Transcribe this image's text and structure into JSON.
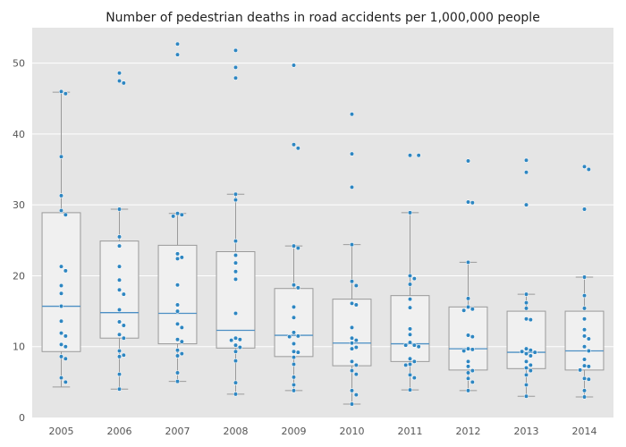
{
  "chart_data": {
    "type": "box",
    "title": "Number of pedestrian deaths in road accidents per 1,000,000 people",
    "xlabel": "",
    "ylabel": "",
    "ylim": [
      0,
      55
    ],
    "yticks": [
      0,
      10,
      20,
      30,
      40,
      50
    ],
    "categories": [
      "2005",
      "2006",
      "2007",
      "2008",
      "2009",
      "2010",
      "2011",
      "2012",
      "2013",
      "2014"
    ],
    "grid": true,
    "colors": {
      "background": "#e5e5e5",
      "grid": "#ffffff",
      "box_fill": "#f0f0f0",
      "box_edge": "#9a9a9a",
      "median": "#4c8fc4",
      "points": "#2e86c1"
    },
    "boxes": [
      {
        "q1": 9.3,
        "median": 15.7,
        "q3": 28.9,
        "whisker_low": 4.3,
        "whisker_high": 45.9
      },
      {
        "q1": 11.2,
        "median": 14.8,
        "q3": 24.9,
        "whisker_low": 4.0,
        "whisker_high": 29.4
      },
      {
        "q1": 10.4,
        "median": 14.7,
        "q3": 24.3,
        "whisker_low": 5.1,
        "whisker_high": 28.8
      },
      {
        "q1": 9.8,
        "median": 12.3,
        "q3": 23.4,
        "whisker_low": 3.3,
        "whisker_high": 31.5
      },
      {
        "q1": 8.6,
        "median": 11.6,
        "q3": 18.2,
        "whisker_low": 3.8,
        "whisker_high": 24.2
      },
      {
        "q1": 7.3,
        "median": 10.5,
        "q3": 16.7,
        "whisker_low": 1.9,
        "whisker_high": 24.4
      },
      {
        "q1": 7.9,
        "median": 10.4,
        "q3": 17.2,
        "whisker_low": 3.9,
        "whisker_high": 28.9
      },
      {
        "q1": 6.7,
        "median": 9.7,
        "q3": 15.6,
        "whisker_low": 3.8,
        "whisker_high": 21.9
      },
      {
        "q1": 6.9,
        "median": 9.2,
        "q3": 15.0,
        "whisker_low": 3.0,
        "whisker_high": 17.4
      },
      {
        "q1": 6.7,
        "median": 9.4,
        "q3": 15.0,
        "whisker_low": 2.9,
        "whisker_high": 19.8
      }
    ],
    "points": [
      [
        46.0,
        45.7,
        36.8,
        31.3,
        29.2,
        28.6,
        21.3,
        20.7,
        18.6,
        17.5,
        15.7,
        13.6,
        11.9,
        11.5,
        10.3,
        10.0,
        8.6,
        8.3,
        5.6,
        5.0
      ],
      [
        48.6,
        47.5,
        47.2,
        29.4,
        25.5,
        24.2,
        21.3,
        19.4,
        18.0,
        17.4,
        15.2,
        13.5,
        13.0,
        11.7,
        11.2,
        9.4,
        8.8,
        8.6,
        6.1,
        4.0
      ],
      [
        52.7,
        51.2,
        28.8,
        28.6,
        28.4,
        23.1,
        22.6,
        22.4,
        18.7,
        15.9,
        15.0,
        13.2,
        12.7,
        11.0,
        10.7,
        9.5,
        9.0,
        8.7,
        6.3,
        5.1
      ],
      [
        51.8,
        49.4,
        47.9,
        31.5,
        30.7,
        24.9,
        22.9,
        21.8,
        20.6,
        19.5,
        14.7,
        11.2,
        11.0,
        10.9,
        10.2,
        9.9,
        9.3,
        8.0,
        4.9,
        3.3
      ],
      [
        49.7,
        38.5,
        38.0,
        24.2,
        23.9,
        18.7,
        18.3,
        15.6,
        14.1,
        12.0,
        11.5,
        11.4,
        10.4,
        9.3,
        9.2,
        8.5,
        7.5,
        5.7,
        4.6,
        3.8
      ],
      [
        42.8,
        37.2,
        32.5,
        24.4,
        19.2,
        18.6,
        16.1,
        15.9,
        12.7,
        11.2,
        10.9,
        10.5,
        9.9,
        9.7,
        7.9,
        7.4,
        6.6,
        6.1,
        3.8,
        3.2,
        1.9
      ],
      [
        37.0,
        37.0,
        28.9,
        20.0,
        19.6,
        18.8,
        16.7,
        15.5,
        12.5,
        11.7,
        10.6,
        10.2,
        10.2,
        10.0,
        8.3,
        7.9,
        7.5,
        7.4,
        6.0,
        5.6,
        3.9
      ],
      [
        36.2,
        30.4,
        30.3,
        21.9,
        16.8,
        15.6,
        15.3,
        15.1,
        11.6,
        11.4,
        9.7,
        9.6,
        9.4,
        7.9,
        7.2,
        6.6,
        6.3,
        5.5,
        5.0,
        3.8
      ],
      [
        36.3,
        34.6,
        30.0,
        17.4,
        16.2,
        15.4,
        13.9,
        13.8,
        9.7,
        9.5,
        9.3,
        9.2,
        9.0,
        8.7,
        7.9,
        7.4,
        7.0,
        6.6,
        6.0,
        4.6,
        3.0
      ],
      [
        35.4,
        35.0,
        29.4,
        19.8,
        17.2,
        15.4,
        13.9,
        12.4,
        11.5,
        11.1,
        10.0,
        9.4,
        8.2,
        7.3,
        7.2,
        6.7,
        5.5,
        5.4,
        3.8,
        2.9
      ]
    ]
  }
}
